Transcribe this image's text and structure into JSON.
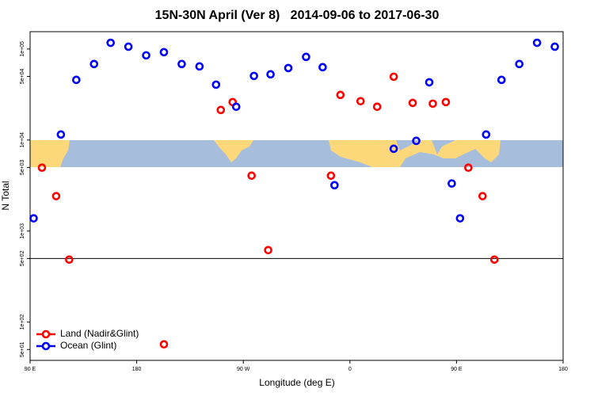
{
  "chart_data": {
    "type": "scatter",
    "title": "15N-30N April (Ver 8)   2014-09-06 to 2017-06-30",
    "xlabel": "Longitude (deg E)",
    "ylabel": "N Total",
    "xlim": [
      90,
      540
    ],
    "xticks": [
      {
        "value": 90,
        "label": "90 E"
      },
      {
        "value": 180,
        "label": "180"
      },
      {
        "value": 270,
        "label": "90 W"
      },
      {
        "value": 360,
        "label": "0"
      },
      {
        "value": 450,
        "label": "90 E"
      },
      {
        "value": 540,
        "label": "180"
      }
    ],
    "ylim": [
      38,
      155000
    ],
    "log_y": true,
    "yticks": [
      {
        "value": 100000,
        "label": "1e+05"
      },
      {
        "value": 50000,
        "label": "5e+04"
      },
      {
        "value": 10000,
        "label": "1e+04"
      },
      {
        "value": 5000,
        "label": "5e+03"
      },
      {
        "value": 1000,
        "label": "1e+03"
      },
      {
        "value": 500,
        "label": "5e+02"
      },
      {
        "value": 100,
        "label": "1e+02"
      },
      {
        "value": 50,
        "label": "5e+01"
      }
    ],
    "hline": 500,
    "legend": "lower left",
    "series": [
      {
        "name": "Land (Nadir&Glint)",
        "color": "#ff0000",
        "x": [
          100,
          112,
          123,
          203,
          251,
          261,
          277,
          291,
          344,
          352,
          369,
          383,
          397,
          413,
          430,
          441,
          460,
          472,
          482
        ],
        "values": [
          4970,
          2420,
          486,
          57,
          21400,
          26100,
          4060,
          618,
          4060,
          31300,
          26700,
          23200,
          49600,
          25600,
          25100,
          26100,
          4970,
          2420,
          486
        ]
      },
      {
        "name": "Ocean (Glint)",
        "color": "#0000ff",
        "x": [
          93,
          116,
          129,
          144,
          158,
          173,
          188,
          203,
          218,
          233,
          247,
          264,
          279,
          293,
          308,
          323,
          337,
          347,
          397,
          416,
          427,
          446,
          453,
          475,
          488,
          503,
          518,
          533
        ],
        "values": [
          1380,
          11500,
          45800,
          68400,
          117000,
          106000,
          85200,
          92300,
          68400,
          64400,
          40600,
          23200,
          50600,
          52700,
          61800,
          81900,
          63100,
          3190,
          8020,
          9800,
          43100,
          3330,
          1380,
          11500,
          45800,
          68400,
          117000,
          106000
        ]
      }
    ]
  }
}
